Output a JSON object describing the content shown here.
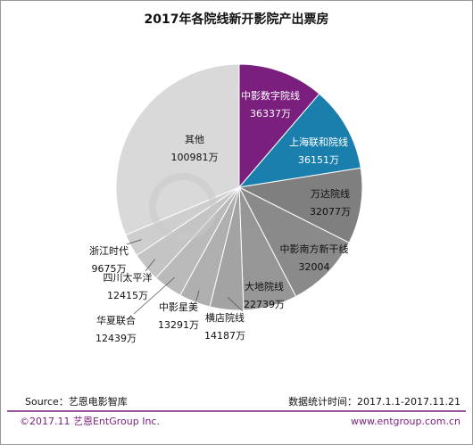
{
  "chart_data": {
    "type": "pie",
    "title": "2017年各院线新开影院产出票房",
    "categories": [
      "中影数字院线",
      "上海联和院线",
      "万达院线",
      "中影南方新干线",
      "大地院线",
      "横店院线",
      "中影星美",
      "华夏联合",
      "四川太平洋",
      "浙江时代",
      "其他"
    ],
    "values": [
      36337,
      36151,
      32077,
      32004,
      22739,
      14187,
      13291,
      12439,
      12415,
      9675,
      100981
    ],
    "value_labels": [
      "36337万",
      "36151万",
      "32077万",
      "32004",
      "22739万",
      "14187万",
      "13291万",
      "12439万",
      "12415万",
      "9675万",
      "100981万"
    ],
    "colors": [
      "#7b1f7e",
      "#1a7fad",
      "#7f7f7f",
      "#8a8a8a",
      "#969696",
      "#a3a3a3",
      "#afafaf",
      "#bababa",
      "#c4c4c4",
      "#cecece",
      "#d9d9d9"
    ],
    "source": "Source：艺恩电影智库",
    "date_range": "数据统计时间：2017.1.1-2017.11.21",
    "copyright": "©2017.11 艺恩EntGroup Inc.",
    "website": "www.entgroup.com.cn"
  }
}
